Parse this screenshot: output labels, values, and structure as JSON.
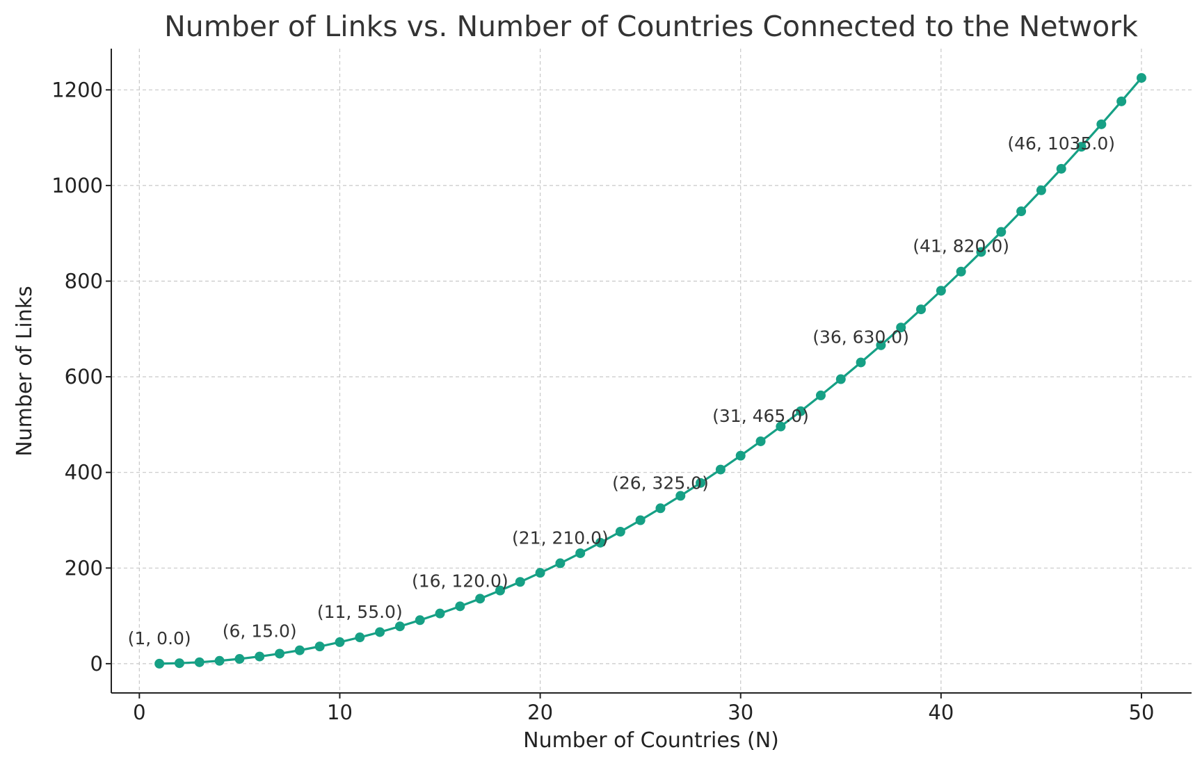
{
  "chart_data": {
    "type": "line",
    "title": "Number of Links vs. Number of Countries Connected to the Network",
    "xlabel": "Number of Countries (N)",
    "ylabel": "Number of Links",
    "xlim": [
      -1.4,
      52.5
    ],
    "ylim": [
      -61.2,
      1286.2
    ],
    "x_ticks": [
      0,
      10,
      20,
      30,
      40,
      50
    ],
    "y_ticks": [
      0,
      200,
      400,
      600,
      800,
      1000,
      1200
    ],
    "grid": true,
    "series": [
      {
        "color": "#16a085",
        "x": [
          1,
          2,
          3,
          4,
          5,
          6,
          7,
          8,
          9,
          10,
          11,
          12,
          13,
          14,
          15,
          16,
          17,
          18,
          19,
          20,
          21,
          22,
          23,
          24,
          25,
          26,
          27,
          28,
          29,
          30,
          31,
          32,
          33,
          34,
          35,
          36,
          37,
          38,
          39,
          40,
          41,
          42,
          43,
          44,
          45,
          46,
          47,
          48,
          49,
          50
        ],
        "y": [
          0,
          1,
          3,
          6,
          10,
          15,
          21,
          28,
          36,
          45,
          55,
          66,
          78,
          91,
          105,
          120,
          136,
          153,
          171,
          190,
          210,
          231,
          253,
          276,
          300,
          325,
          351,
          378,
          406,
          435,
          465,
          496,
          528,
          561,
          595,
          630,
          666,
          703,
          741,
          780,
          820,
          861,
          903,
          946,
          990,
          1035,
          1081,
          1128,
          1176,
          1225
        ]
      }
    ],
    "annotations": [
      {
        "x": 1,
        "y": 0,
        "text": "(1, 0.0)"
      },
      {
        "x": 6,
        "y": 15,
        "text": "(6, 15.0)"
      },
      {
        "x": 11,
        "y": 55,
        "text": "(11, 55.0)"
      },
      {
        "x": 16,
        "y": 120,
        "text": "(16, 120.0)"
      },
      {
        "x": 21,
        "y": 210,
        "text": "(21, 210.0)"
      },
      {
        "x": 26,
        "y": 325,
        "text": "(26, 325.0)"
      },
      {
        "x": 31,
        "y": 465,
        "text": "(31, 465.0)"
      },
      {
        "x": 36,
        "y": 630,
        "text": "(36, 630.0)"
      },
      {
        "x": 41,
        "y": 820,
        "text": "(41, 820.0)"
      },
      {
        "x": 46,
        "y": 1035,
        "text": "(46, 1035.0)"
      }
    ]
  }
}
